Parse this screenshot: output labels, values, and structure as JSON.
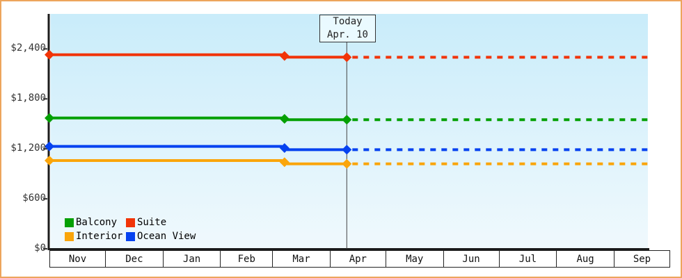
{
  "frame": {
    "border_color": "#eda55c",
    "background": "#ffffff"
  },
  "chart_data": {
    "type": "line",
    "title": "",
    "x_axis": {
      "months": [
        "Nov",
        "Dec",
        "Jan",
        "Feb",
        "Mar",
        "Apr",
        "May",
        "Jun",
        "Jul",
        "Aug",
        "Sep"
      ],
      "month_days": [
        30,
        31,
        31,
        28,
        31,
        30,
        31,
        30,
        31,
        31,
        30
      ]
    },
    "y_axis": {
      "ticks": [
        {
          "label": "$0",
          "value": 0
        },
        {
          "label": "$600",
          "value": 600
        },
        {
          "label": "$1,200",
          "value": 1200
        },
        {
          "label": "$1,800",
          "value": 1800
        },
        {
          "label": "$2,400",
          "value": 2400
        }
      ],
      "max_value": 2820
    },
    "today_marker": {
      "line1": "Today",
      "line2": "Apr. 10",
      "month": "Apr",
      "day": 10
    },
    "plot_background": {
      "top": "#c9ecfa",
      "bottom": "#f0f9fd"
    },
    "axis_color": "#1b1b1b",
    "today_line_color": "#444444",
    "grid": false,
    "legend_position": "bottom-left",
    "series": [
      {
        "name": "Suite",
        "color": "#f13408",
        "points": [
          {
            "month": "Nov",
            "day": 1,
            "value": 2330
          },
          {
            "month": "Mar",
            "day": 6,
            "value": 2330
          },
          {
            "month": "Mar",
            "day": 9,
            "value": 2300
          },
          {
            "month": "Apr",
            "day": 10,
            "value": 2300
          }
        ],
        "forecast_value": 2300
      },
      {
        "name": "Balcony",
        "color": "#04a004",
        "points": [
          {
            "month": "Nov",
            "day": 1,
            "value": 1570
          },
          {
            "month": "Mar",
            "day": 6,
            "value": 1570
          },
          {
            "month": "Mar",
            "day": 9,
            "value": 1550
          },
          {
            "month": "Apr",
            "day": 10,
            "value": 1550
          }
        ],
        "forecast_value": 1550
      },
      {
        "name": "Ocean View",
        "color": "#0542f0",
        "points": [
          {
            "month": "Nov",
            "day": 1,
            "value": 1230
          },
          {
            "month": "Mar",
            "day": 6,
            "value": 1230
          },
          {
            "month": "Mar",
            "day": 9,
            "value": 1190
          },
          {
            "month": "Apr",
            "day": 10,
            "value": 1190
          }
        ],
        "forecast_value": 1190
      },
      {
        "name": "Interior",
        "color": "#faa50b",
        "points": [
          {
            "month": "Nov",
            "day": 1,
            "value": 1060
          },
          {
            "month": "Mar",
            "day": 6,
            "value": 1060
          },
          {
            "month": "Mar",
            "day": 9,
            "value": 1020
          },
          {
            "month": "Apr",
            "day": 10,
            "value": 1020
          }
        ],
        "forecast_value": 1020
      }
    ],
    "legend": [
      {
        "label": "Balcony",
        "color": "#04a004"
      },
      {
        "label": "Suite",
        "color": "#f13408"
      },
      {
        "label": "Interior",
        "color": "#faa50b"
      },
      {
        "label": "Ocean View",
        "color": "#0542f0"
      }
    ]
  }
}
